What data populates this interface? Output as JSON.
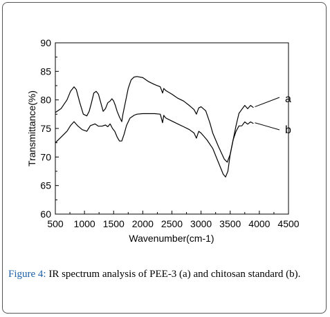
{
  "chart_data": {
    "type": "line",
    "title": "",
    "xlabel": "Wavenumber(cm-1)",
    "ylabel": "Transmittance(%)",
    "xlim": [
      500,
      4500
    ],
    "ylim": [
      60,
      90
    ],
    "x_ticks": [
      500,
      1000,
      1500,
      2000,
      2500,
      3000,
      3500,
      4000,
      4500
    ],
    "y_ticks": [
      60,
      65,
      70,
      75,
      80,
      85,
      90
    ],
    "grid": false,
    "series": [
      {
        "name": "a",
        "x": [
          500,
          600,
          700,
          760,
          820,
          860,
          920,
          980,
          1040,
          1080,
          1120,
          1160,
          1200,
          1240,
          1280,
          1320,
          1360,
          1400,
          1440,
          1470,
          1500,
          1530,
          1560,
          1600,
          1640,
          1660,
          1700,
          1750,
          1800,
          1850,
          1900,
          2000,
          2100,
          2200,
          2300,
          2340,
          2360,
          2380,
          2400,
          2500,
          2600,
          2700,
          2800,
          2880,
          2920,
          2960,
          3000,
          3080,
          3150,
          3200,
          3300,
          3400,
          3450,
          3500,
          3550,
          3600,
          3650,
          3700,
          3750,
          3800,
          3850,
          3900
        ],
        "y": [
          77.8,
          78.5,
          80.0,
          81.5,
          82.3,
          81.8,
          79.5,
          77.5,
          77.2,
          78.0,
          79.5,
          81.2,
          81.5,
          81.0,
          79.5,
          78.0,
          78.5,
          79.5,
          79.8,
          80.2,
          79.8,
          79.0,
          78.0,
          77.0,
          76.2,
          77.5,
          79.5,
          82.0,
          83.5,
          84.0,
          84.1,
          83.9,
          83.2,
          82.7,
          82.3,
          81.2,
          82.0,
          81.8,
          81.6,
          81.0,
          80.3,
          79.8,
          79.0,
          78.3,
          77.5,
          78.6,
          78.8,
          78.1,
          76.0,
          74.2,
          71.8,
          69.6,
          69.1,
          70.5,
          73.0,
          75.5,
          77.5,
          78.5,
          78.9,
          78.6,
          78.9,
          78.8
        ]
      },
      {
        "name": "b",
        "x": [
          500,
          600,
          700,
          760,
          820,
          880,
          960,
          1040,
          1100,
          1180,
          1240,
          1300,
          1360,
          1400,
          1440,
          1480,
          1520,
          1560,
          1600,
          1640,
          1680,
          1720,
          1780,
          1850,
          1900,
          2000,
          2100,
          2200,
          2300,
          2340,
          2360,
          2380,
          2400,
          2500,
          2600,
          2700,
          2800,
          2880,
          2920,
          2960,
          3000,
          3100,
          3200,
          3300,
          3380,
          3420,
          3460,
          3500,
          3550,
          3600,
          3650,
          3700,
          3750,
          3800,
          3850,
          3900
        ],
        "y": [
          72.5,
          73.5,
          74.5,
          75.5,
          76.2,
          75.5,
          74.8,
          74.5,
          75.5,
          75.8,
          75.4,
          75.4,
          75.6,
          75.3,
          75.8,
          75.0,
          74.5,
          73.5,
          72.8,
          72.8,
          74.0,
          75.5,
          76.8,
          77.3,
          77.5,
          77.6,
          77.6,
          77.6,
          77.5,
          76.0,
          77.3,
          77.0,
          76.8,
          76.3,
          75.8,
          75.3,
          74.8,
          74.2,
          73.3,
          74.5,
          74.2,
          73.0,
          71.5,
          69.0,
          67.0,
          66.5,
          67.5,
          70.5,
          73.0,
          74.5,
          75.3,
          75.6,
          76.0,
          75.9,
          76.0,
          76.0
        ]
      }
    ]
  },
  "caption": {
    "figure_label": "Figure 4:",
    "text": " IR spectrum analysis of PEE-3 (a) and chitosan standard (b)."
  }
}
